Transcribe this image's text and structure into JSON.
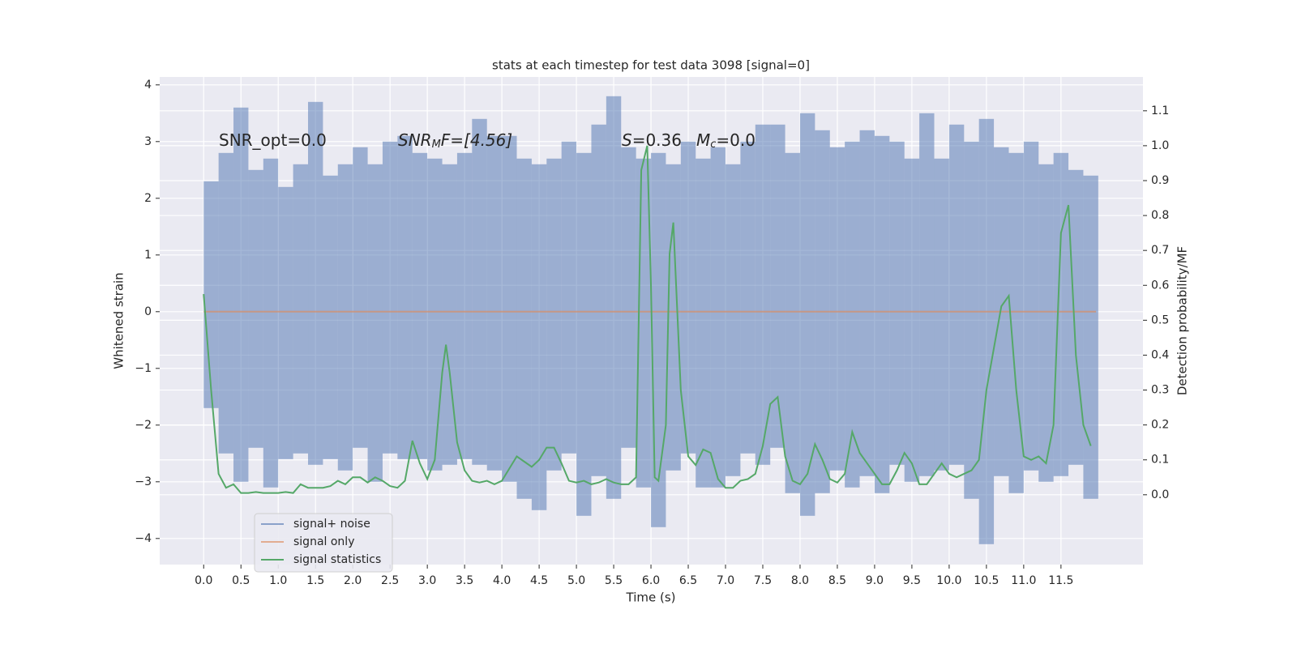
{
  "chart_data": {
    "type": "line",
    "title": "stats at each timestep for test data 3098 [signal=0]",
    "xlabel": "Time (s)",
    "ylabel": "Whitened strain",
    "y2label": "Detection probability/MF",
    "annotations": [
      [
        "SNR_opt=0.0"
      ],
      [
        "SNR",
        "M",
        "F=[4.56]"
      ],
      [
        "S",
        "=0.36"
      ],
      [
        "M",
        "c",
        "=0.0"
      ]
    ],
    "xlim": [
      -0.59,
      12.6
    ],
    "ylim": [
      -4.46,
      4.14
    ],
    "y2lim": [
      -0.2,
      1.197
    ],
    "xticks": [
      {
        "value": 0,
        "label": "0.0"
      },
      {
        "value": 0.5,
        "label": "0.5"
      },
      {
        "value": 1,
        "label": "1.0"
      },
      {
        "value": 1.5,
        "label": "1.5"
      },
      {
        "value": 2,
        "label": "2.0"
      },
      {
        "value": 2.5,
        "label": "2.5"
      },
      {
        "value": 3,
        "label": "3.0"
      },
      {
        "value": 3.5,
        "label": "3.5"
      },
      {
        "value": 4,
        "label": "4.0"
      },
      {
        "value": 4.5,
        "label": "4.5"
      },
      {
        "value": 5,
        "label": "5.0"
      },
      {
        "value": 5.5,
        "label": "5.5"
      },
      {
        "value": 6,
        "label": "6.0"
      },
      {
        "value": 6.5,
        "label": "6.5"
      },
      {
        "value": 7,
        "label": "7.0"
      },
      {
        "value": 7.5,
        "label": "7.5"
      },
      {
        "value": 8,
        "label": "8.0"
      },
      {
        "value": 8.5,
        "label": "8.5"
      },
      {
        "value": 9,
        "label": "9.0"
      },
      {
        "value": 9.5,
        "label": "9.5"
      },
      {
        "value": 10,
        "label": "10.0"
      },
      {
        "value": 10.5,
        "label": "10.5"
      },
      {
        "value": 11,
        "label": "11.0"
      },
      {
        "value": 11.5,
        "label": "11.5"
      }
    ],
    "yticks": [
      {
        "value": -4,
        "label": "−4"
      },
      {
        "value": -3,
        "label": "−3"
      },
      {
        "value": -2,
        "label": "−2"
      },
      {
        "value": -1,
        "label": "−1"
      },
      0,
      1,
      2,
      3,
      4
    ],
    "y2ticks": [
      {
        "value": 0,
        "label": "0.0"
      },
      {
        "value": 0.1,
        "label": "0.1"
      },
      {
        "value": 0.2,
        "label": "0.2"
      },
      {
        "value": 0.3,
        "label": "0.3"
      },
      {
        "value": 0.4,
        "label": "0.4"
      },
      {
        "value": 0.5,
        "label": "0.5"
      },
      {
        "value": 0.6,
        "label": "0.6"
      },
      {
        "value": 0.7,
        "label": "0.7"
      },
      {
        "value": 0.8,
        "label": "0.8"
      },
      {
        "value": 0.9,
        "label": "0.9"
      },
      {
        "value": 1,
        "label": "1.0"
      },
      {
        "value": 1.1,
        "label": "1.1"
      }
    ],
    "grid": true,
    "legend": "lower left",
    "series": [
      {
        "name": "signal+ noise",
        "color": "#4c72b0",
        "x": [
          0,
          0.2,
          0.4,
          0.6,
          0.8,
          1,
          1.2,
          1.4,
          1.6,
          1.8,
          2,
          2.2,
          2.4,
          2.6,
          2.8,
          3,
          3.2,
          3.4,
          3.6,
          3.8,
          4,
          4.2,
          4.4,
          4.6,
          4.8,
          5,
          5.2,
          5.4,
          5.6,
          5.8,
          6,
          6.2,
          6.4,
          6.6,
          6.8,
          7,
          7.2,
          7.4,
          7.6,
          7.8,
          8,
          8.2,
          8.4,
          8.6,
          8.8,
          9,
          9.2,
          9.4,
          9.6,
          9.8,
          10,
          10.2,
          10.4,
          10.6,
          10.8,
          11,
          11.2,
          11.4,
          11.6,
          11.8
        ],
        "high": [
          2.3,
          2.8,
          3.6,
          2.5,
          2.7,
          2.2,
          2.6,
          3.7,
          2.4,
          2.6,
          2.9,
          2.6,
          3.0,
          3.1,
          2.8,
          2.7,
          2.6,
          2.8,
          3.4,
          3.1,
          3.1,
          2.7,
          2.6,
          2.7,
          3.0,
          2.8,
          3.3,
          3.8,
          2.9,
          2.7,
          2.8,
          2.6,
          3.0,
          2.7,
          2.9,
          2.6,
          3.0,
          3.3,
          3.3,
          2.8,
          3.5,
          3.2,
          2.9,
          3.0,
          3.2,
          3.1,
          3.0,
          2.7,
          3.5,
          2.7,
          3.3,
          3.0,
          3.4,
          2.9,
          2.8,
          3.0,
          2.6,
          2.8,
          2.5,
          2.4
        ],
        "low": [
          -1.7,
          -2.5,
          -3.0,
          -2.4,
          -3.1,
          -2.6,
          -2.5,
          -2.7,
          -2.6,
          -2.8,
          -2.4,
          -3.0,
          -2.5,
          -2.6,
          -2.6,
          -2.8,
          -2.7,
          -2.6,
          -2.7,
          -2.8,
          -3.0,
          -3.3,
          -3.5,
          -2.8,
          -2.5,
          -3.6,
          -2.9,
          -3.3,
          -2.4,
          -3.1,
          -3.8,
          -2.8,
          -2.5,
          -3.1,
          -3.1,
          -2.9,
          -2.5,
          -2.7,
          -2.4,
          -3.2,
          -3.6,
          -3.2,
          -2.8,
          -3.1,
          -2.9,
          -3.2,
          -2.7,
          -3.0,
          -2.9,
          -2.8,
          -2.7,
          -3.3,
          -4.1,
          -2.9,
          -3.2,
          -2.8,
          -3.0,
          -2.9,
          -2.7,
          -3.3
        ]
      },
      {
        "name": "signal only",
        "color": "#dd8452",
        "x": [
          0,
          11.97
        ],
        "values": [
          0,
          0
        ]
      },
      {
        "name": "signal statistics",
        "color": "#55a868",
        "axis": "y2",
        "x": [
          0,
          0.1,
          0.2,
          0.3,
          0.4,
          0.5,
          0.6,
          0.7,
          0.8,
          0.9,
          1.0,
          1.1,
          1.2,
          1.3,
          1.4,
          1.5,
          1.6,
          1.7,
          1.8,
          1.9,
          2.0,
          2.1,
          2.2,
          2.3,
          2.4,
          2.5,
          2.6,
          2.7,
          2.8,
          2.9,
          3.0,
          3.1,
          3.2,
          3.25,
          3.3,
          3.4,
          3.5,
          3.6,
          3.7,
          3.8,
          3.9,
          4.0,
          4.1,
          4.2,
          4.3,
          4.4,
          4.5,
          4.6,
          4.7,
          4.8,
          4.9,
          5.0,
          5.1,
          5.2,
          5.3,
          5.4,
          5.5,
          5.6,
          5.7,
          5.8,
          5.87,
          5.95,
          6.0,
          6.05,
          6.1,
          6.2,
          6.25,
          6.3,
          6.4,
          6.5,
          6.6,
          6.7,
          6.8,
          6.9,
          7.0,
          7.1,
          7.2,
          7.3,
          7.4,
          7.5,
          7.6,
          7.7,
          7.8,
          7.9,
          8.0,
          8.1,
          8.2,
          8.3,
          8.4,
          8.5,
          8.6,
          8.7,
          8.8,
          8.9,
          9.0,
          9.1,
          9.2,
          9.3,
          9.4,
          9.5,
          9.6,
          9.7,
          9.8,
          9.9,
          10.0,
          10.1,
          10.2,
          10.3,
          10.4,
          10.5,
          10.6,
          10.7,
          10.8,
          10.9,
          11.0,
          11.1,
          11.2,
          11.3,
          11.4,
          11.5,
          11.6,
          11.7,
          11.8,
          11.9
        ],
        "values": [
          0.575,
          0.3,
          0.06,
          0.02,
          0.03,
          0.005,
          0.005,
          0.008,
          0.005,
          0.005,
          0.005,
          0.008,
          0.005,
          0.03,
          0.02,
          0.02,
          0.02,
          0.025,
          0.04,
          0.03,
          0.05,
          0.05,
          0.035,
          0.05,
          0.04,
          0.025,
          0.02,
          0.04,
          0.155,
          0.09,
          0.045,
          0.1,
          0.35,
          0.43,
          0.35,
          0.15,
          0.07,
          0.04,
          0.035,
          0.04,
          0.03,
          0.04,
          0.075,
          0.11,
          0.095,
          0.08,
          0.1,
          0.135,
          0.135,
          0.09,
          0.04,
          0.035,
          0.04,
          0.03,
          0.035,
          0.045,
          0.035,
          0.03,
          0.03,
          0.05,
          0.93,
          1.0,
          0.6,
          0.05,
          0.04,
          0.2,
          0.69,
          0.78,
          0.3,
          0.11,
          0.085,
          0.13,
          0.12,
          0.045,
          0.02,
          0.02,
          0.04,
          0.045,
          0.06,
          0.14,
          0.26,
          0.28,
          0.11,
          0.04,
          0.03,
          0.06,
          0.145,
          0.1,
          0.045,
          0.035,
          0.06,
          0.18,
          0.12,
          0.09,
          0.06,
          0.03,
          0.03,
          0.07,
          0.12,
          0.09,
          0.03,
          0.03,
          0.06,
          0.09,
          0.06,
          0.05,
          0.06,
          0.07,
          0.1,
          0.3,
          0.42,
          0.54,
          0.57,
          0.3,
          0.11,
          0.1,
          0.11,
          0.09,
          0.2,
          0.75,
          0.83,
          0.4,
          0.2,
          0.14
        ]
      }
    ]
  }
}
